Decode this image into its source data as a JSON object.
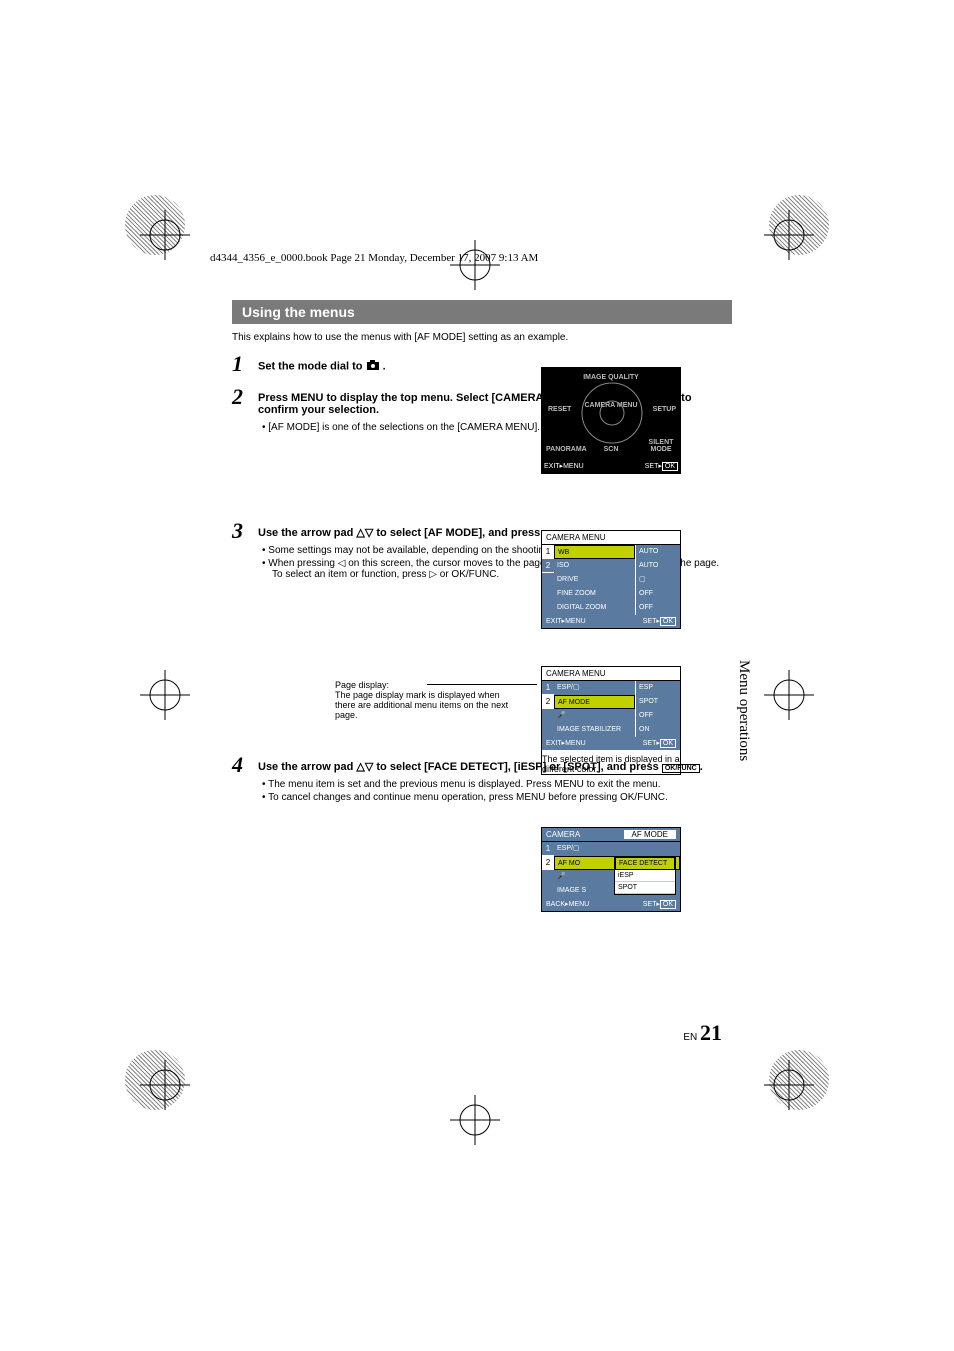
{
  "header_line": "d4344_4356_e_0000.book  Page 21  Monday, December 17, 2007  9:13 AM",
  "title": "Using the menus",
  "intro": "This explains how to use the menus with [AF MODE] setting as an example.",
  "steps": {
    "s1": {
      "num": "1",
      "title_pre": "Set the mode dial to ",
      "title_post": "."
    },
    "s2": {
      "num": "2",
      "title": "Press MENU to display the top menu. Select [CAMERA MENU] and press OK/FUNC to confirm your selection.",
      "b1": "[AF MODE] is one of the selections on the [CAMERA MENU]."
    },
    "s3": {
      "num": "3",
      "title": "Use the arrow pad △▽ to select [AF MODE], and press OK/FUNC.",
      "b1": "Some settings may not be available, depending on the shooting/scene mode.",
      "b2": "When pressing ◁ on this screen, the cursor moves to the page display. Press △▽ to change the page. To select an item or function, press ▷ or OK/FUNC."
    },
    "s4": {
      "num": "4",
      "title": "Use the arrow pad △▽ to select [FACE DETECT], [iESP] or [SPOT], and press OK/FUNC.",
      "b1": "The menu item is set and the previous menu is displayed. Press MENU to exit the menu.",
      "b2": "To cancel changes and continue menu operation, press MENU before pressing OK/FUNC."
    }
  },
  "panel1": {
    "labels": {
      "top": "IMAGE QUALITY",
      "left": "RESET",
      "center": "CAMERA MENU",
      "right": "SETUP",
      "bl": "PANORAMA",
      "bm": "SCN",
      "br": "SILENT MODE"
    },
    "foot_l": "EXIT▸MENU",
    "foot_r": "SET▸OK"
  },
  "panel2": {
    "head": "CAMERA MENU",
    "rows": [
      {
        "l": "WB",
        "v": "AUTO",
        "sel": true
      },
      {
        "l": "ISO",
        "v": "AUTO"
      },
      {
        "l": "DRIVE",
        "v": "▢"
      },
      {
        "l": "FINE ZOOM",
        "v": "OFF"
      },
      {
        "l": "DIGITAL ZOOM",
        "v": "OFF"
      }
    ],
    "foot_l": "EXIT▸MENU",
    "foot_r": "SET▸OK"
  },
  "panel3": {
    "head": "CAMERA MENU",
    "rows": [
      {
        "l": "ESP/▢",
        "v": "ESP"
      },
      {
        "l": "AF MODE",
        "v": "SPOT",
        "sel": true
      },
      {
        "l": "🎤",
        "v": "OFF"
      },
      {
        "l": "IMAGE STABILIZER",
        "v": "ON"
      }
    ],
    "foot_l": "EXIT▸MENU",
    "foot_r": "SET▸OK",
    "note": "The selected item is displayed in a different color."
  },
  "panel4": {
    "head": "CAMERA",
    "subhead": "AF MODE",
    "rows": [
      {
        "l": "ESP/▢"
      },
      {
        "l": "AF MO",
        "sel": true
      },
      {
        "l": "🎤"
      },
      {
        "l": "IMAGE S"
      }
    ],
    "popup": [
      "FACE DETECT",
      "iESP",
      "SPOT"
    ],
    "foot_l": "BACK▸MENU",
    "foot_r": "SET▸OK"
  },
  "caption1": {
    "t": "Page display:",
    "b": "The page display mark is displayed when there are additional menu items on the next page."
  },
  "side": "Menu operations",
  "pgnum_pre": "EN",
  "pgnum": "21"
}
